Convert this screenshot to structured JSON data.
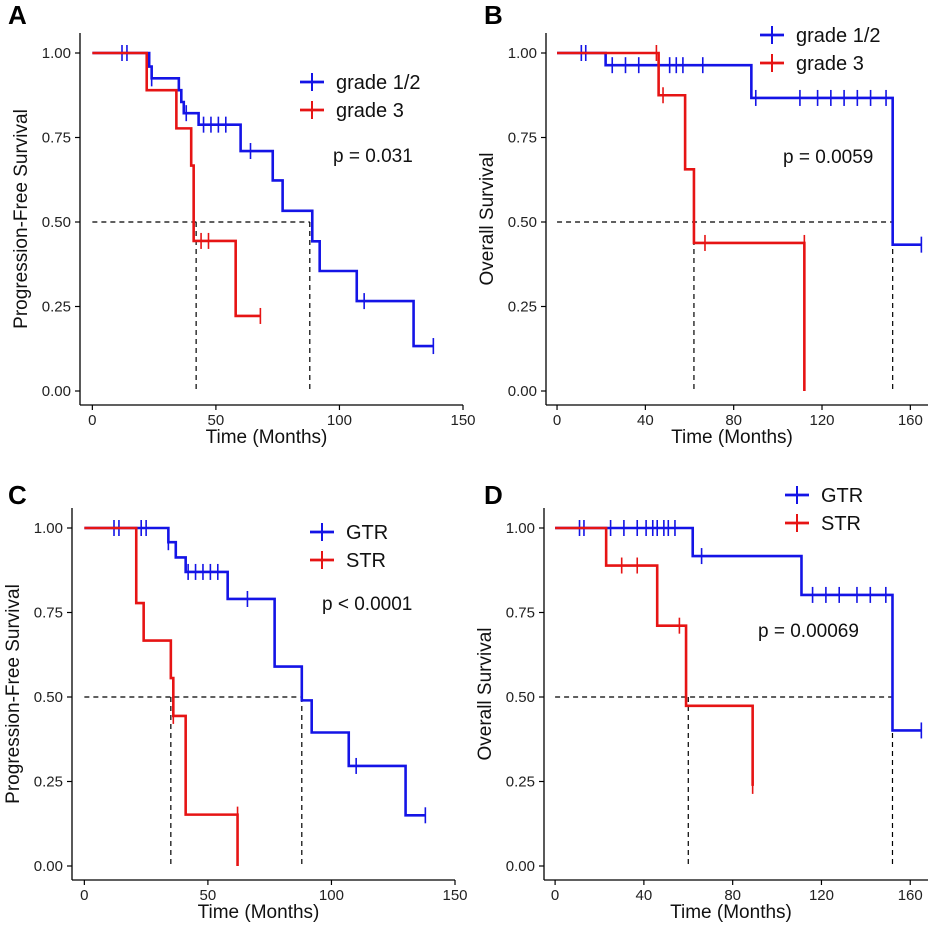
{
  "colors": {
    "blue": "#1414e6",
    "red": "#e61414",
    "axis": "#000000"
  },
  "chart_data": [
    {
      "type": "line",
      "panel": "A",
      "xlabel": "Time (Months)",
      "ylabel": "Progression-Free Survival",
      "xlim": [
        -5,
        150
      ],
      "ylim": [
        0,
        1
      ],
      "xticks": [
        0,
        50,
        100,
        150
      ],
      "xtick_labels": [
        "0",
        "50",
        "100",
        "150"
      ],
      "yticks": [
        0,
        0.25,
        0.5,
        0.75,
        1
      ],
      "ytick_labels": [
        "0.00",
        "0.25",
        "0.50",
        "0.75",
        "1.00"
      ],
      "pvalue": "p = 0.031",
      "legend": {
        "position": "top-right"
      },
      "median_line": {
        "y": 0.5,
        "drops": [
          42,
          88
        ]
      },
      "series": [
        {
          "name": "grade 1/2",
          "legend_label": "grade 1/2",
          "color": "#1414e6",
          "steps": [
            [
              0,
              1.0
            ],
            [
              23,
              0.96
            ],
            [
              24,
              0.925
            ],
            [
              35,
              0.89
            ],
            [
              36,
              0.855
            ],
            [
              37,
              0.822
            ],
            [
              43,
              0.788
            ],
            [
              60,
              0.71
            ],
            [
              73,
              0.623
            ],
            [
              77,
              0.533
            ],
            [
              86,
              0.533
            ],
            [
              89,
              0.443
            ],
            [
              92,
              0.355
            ],
            [
              107,
              0.266
            ],
            [
              130,
              0.133
            ],
            [
              138,
              0.133
            ]
          ],
          "censors": [
            [
              12,
              1.0
            ],
            [
              14,
              1.0
            ],
            [
              24,
              0.925
            ],
            [
              38,
              0.822
            ],
            [
              45,
              0.788
            ],
            [
              48,
              0.788
            ],
            [
              51,
              0.788
            ],
            [
              54,
              0.788
            ],
            [
              64,
              0.71
            ],
            [
              110,
              0.266
            ],
            [
              138,
              0.133
            ]
          ]
        },
        {
          "name": "grade 3",
          "legend_label": "grade 3",
          "color": "#e61414",
          "steps": [
            [
              0,
              1.0
            ],
            [
              22,
              0.89
            ],
            [
              34,
              0.777
            ],
            [
              40,
              0.667
            ],
            [
              41,
              0.444
            ],
            [
              58,
              0.222
            ],
            [
              68,
              0.222
            ]
          ],
          "censors": [
            [
              44,
              0.444
            ],
            [
              47,
              0.444
            ],
            [
              68,
              0.222
            ]
          ]
        }
      ]
    },
    {
      "type": "line",
      "panel": "B",
      "xlabel": "Time (Months)",
      "ylabel": "Overall Survival",
      "xlim": [
        -5,
        168
      ],
      "ylim": [
        0,
        1
      ],
      "xticks": [
        0,
        40,
        80,
        120,
        160
      ],
      "xtick_labels": [
        "0",
        "40",
        "80",
        "120",
        "160"
      ],
      "yticks": [
        0,
        0.25,
        0.5,
        0.75,
        1
      ],
      "ytick_labels": [
        "0.00",
        "0.25",
        "0.50",
        "0.75",
        "1.00"
      ],
      "pvalue": "p = 0.0059",
      "legend": {
        "position": "top-right"
      },
      "median_line": {
        "y": 0.5,
        "drops": [
          62,
          152
        ]
      },
      "series": [
        {
          "name": "grade 1/2",
          "legend_label": "grade 1/2",
          "color": "#1414e6",
          "steps": [
            [
              0,
              1.0
            ],
            [
              22,
              0.964
            ],
            [
              88,
              0.867
            ],
            [
              152,
              0.433
            ],
            [
              165,
              0.433
            ]
          ],
          "censors": [
            [
              11,
              1.0
            ],
            [
              13,
              1.0
            ],
            [
              25,
              0.964
            ],
            [
              31,
              0.964
            ],
            [
              37,
              0.964
            ],
            [
              46,
              0.964
            ],
            [
              51,
              0.964
            ],
            [
              54,
              0.964
            ],
            [
              57,
              0.964
            ],
            [
              66,
              0.964
            ],
            [
              90,
              0.867
            ],
            [
              110,
              0.867
            ],
            [
              118,
              0.867
            ],
            [
              124,
              0.867
            ],
            [
              130,
              0.867
            ],
            [
              136,
              0.867
            ],
            [
              142,
              0.867
            ],
            [
              149,
              0.867
            ],
            [
              165,
              0.433
            ]
          ]
        },
        {
          "name": "grade 3",
          "legend_label": "grade 3",
          "color": "#e61414",
          "steps": [
            [
              0,
              1.0
            ],
            [
              46,
              0.875
            ],
            [
              58,
              0.656
            ],
            [
              62,
              0.438
            ],
            [
              112,
              0.0
            ]
          ],
          "censors": [
            [
              45,
              1.0
            ],
            [
              48,
              0.875
            ],
            [
              67,
              0.438
            ],
            [
              112,
              0.438
            ]
          ]
        }
      ]
    },
    {
      "type": "line",
      "panel": "C",
      "xlabel": "Time (Months)",
      "ylabel": "Progression-Free Survival",
      "xlim": [
        -5,
        150
      ],
      "ylim": [
        0,
        1
      ],
      "xticks": [
        0,
        50,
        100,
        150
      ],
      "xtick_labels": [
        "0",
        "50",
        "100",
        "150"
      ],
      "yticks": [
        0,
        0.25,
        0.5,
        0.75,
        1
      ],
      "ytick_labels": [
        "0.00",
        "0.25",
        "0.50",
        "0.75",
        "1.00"
      ],
      "pvalue": "p < 0.0001",
      "legend": {
        "position": "top-right"
      },
      "median_line": {
        "y": 0.5,
        "drops": [
          35,
          88
        ]
      },
      "series": [
        {
          "name": "GTR",
          "legend_label": "GTR",
          "color": "#1414e6",
          "steps": [
            [
              0,
              1.0
            ],
            [
              34,
              0.958
            ],
            [
              37,
              0.913
            ],
            [
              41,
              0.87
            ],
            [
              58,
              0.79
            ],
            [
              77,
              0.69
            ],
            [
              77,
              0.59
            ],
            [
              88,
              0.49
            ],
            [
              92,
              0.395
            ],
            [
              107,
              0.296
            ],
            [
              130,
              0.15
            ],
            [
              138,
              0.15
            ]
          ],
          "censors": [
            [
              12,
              1.0
            ],
            [
              14,
              1.0
            ],
            [
              23,
              1.0
            ],
            [
              25,
              1.0
            ],
            [
              34,
              0.958
            ],
            [
              42,
              0.87
            ],
            [
              45,
              0.87
            ],
            [
              48,
              0.87
            ],
            [
              51,
              0.87
            ],
            [
              54,
              0.87
            ],
            [
              66,
              0.79
            ],
            [
              110,
              0.296
            ],
            [
              138,
              0.15
            ]
          ]
        },
        {
          "name": "STR",
          "legend_label": "STR",
          "color": "#e61414",
          "steps": [
            [
              0,
              1.0
            ],
            [
              21,
              0.778
            ],
            [
              24,
              0.667
            ],
            [
              35,
              0.556
            ],
            [
              36,
              0.444
            ],
            [
              41,
              0.152
            ],
            [
              62,
              0.0
            ]
          ],
          "censors": [
            [
              36,
              0.444
            ],
            [
              62,
              0.152
            ]
          ]
        }
      ]
    },
    {
      "type": "line",
      "panel": "D",
      "xlabel": "Time (Months)",
      "ylabel": "Overall Survival",
      "xlim": [
        -5,
        168
      ],
      "ylim": [
        0,
        1
      ],
      "xticks": [
        0,
        40,
        80,
        120,
        160
      ],
      "xtick_labels": [
        "0",
        "40",
        "80",
        "120",
        "160"
      ],
      "yticks": [
        0,
        0.25,
        0.5,
        0.75,
        1
      ],
      "ytick_labels": [
        "0.00",
        "0.25",
        "0.50",
        "0.75",
        "1.00"
      ],
      "pvalue": "p = 0.00069",
      "legend": {
        "position": "top-right"
      },
      "median_line": {
        "y": 0.5,
        "drops": [
          60,
          152
        ]
      },
      "series": [
        {
          "name": "GTR",
          "legend_label": "GTR",
          "color": "#1414e6",
          "steps": [
            [
              0,
              1.0
            ],
            [
              62,
              0.917
            ],
            [
              110,
              0.917
            ],
            [
              111,
              0.802
            ],
            [
              152,
              0.401
            ],
            [
              165,
              0.401
            ]
          ],
          "censors": [
            [
              11,
              1.0
            ],
            [
              13,
              1.0
            ],
            [
              25,
              1.0
            ],
            [
              31,
              1.0
            ],
            [
              37,
              1.0
            ],
            [
              41,
              1.0
            ],
            [
              44,
              1.0
            ],
            [
              46,
              1.0
            ],
            [
              49,
              1.0
            ],
            [
              51,
              1.0
            ],
            [
              54,
              1.0
            ],
            [
              66,
              0.917
            ],
            [
              116,
              0.802
            ],
            [
              122,
              0.802
            ],
            [
              128,
              0.802
            ],
            [
              136,
              0.802
            ],
            [
              142,
              0.802
            ],
            [
              149,
              0.802
            ],
            [
              165,
              0.401
            ]
          ]
        },
        {
          "name": "STR",
          "legend_label": "STR",
          "color": "#e61414",
          "steps": [
            [
              0,
              1.0
            ],
            [
              23,
              0.889
            ],
            [
              46,
              0.711
            ],
            [
              59,
              0.474
            ],
            [
              89,
              0.237
            ]
          ],
          "censors": [
            [
              30,
              0.889
            ],
            [
              37,
              0.889
            ],
            [
              56,
              0.711
            ],
            [
              89,
              0.237
            ]
          ]
        }
      ]
    }
  ]
}
